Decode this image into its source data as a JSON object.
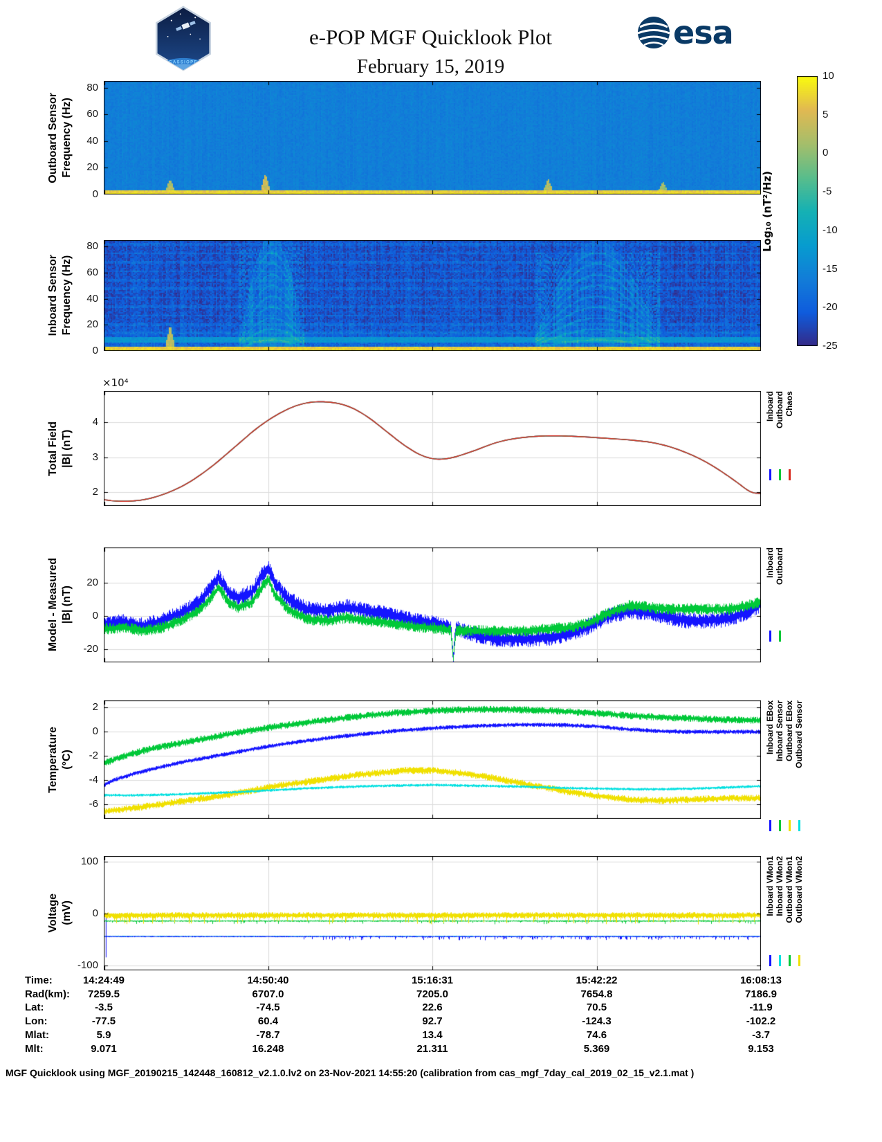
{
  "header": {
    "title": "e-POP MGF Quicklook Plot",
    "date": "February 15, 2019",
    "mission_patch": "CASSIOPE",
    "esa_wordmark": "esa"
  },
  "colorbar": {
    "label": "Log₁₀ (nT²/Hz)",
    "ticks": [
      10,
      5,
      0,
      -5,
      -10,
      -15,
      -20,
      -25
    ],
    "min": -25,
    "max": 10,
    "colormap": "parula"
  },
  "time_axis": {
    "tick_labels": [
      "14:24:49",
      "14:50:40",
      "15:16:31",
      "15:42:22",
      "16:08:13"
    ]
  },
  "chart_data": [
    {
      "name": "outboard-sensor-spectrogram",
      "type": "heatmap",
      "ylabel1": "Outboard Sensor",
      "ylabel2": "Frequency (Hz)",
      "ylim": [
        0,
        85
      ],
      "yticks": [
        0,
        20,
        40,
        60,
        80
      ],
      "base_log_power": -16,
      "noise_amp": 1.1,
      "column_noise": 0.6,
      "bottom_band": {
        "max_hz": 3.5,
        "log_power": 7,
        "noise": 1.5
      },
      "bursts": [
        {
          "x": 0.1,
          "max_hz": 10,
          "log_power": 2
        },
        {
          "x": 0.245,
          "max_hz": 14,
          "log_power": 4
        },
        {
          "x": 0.675,
          "max_hz": 10,
          "log_power": 2
        },
        {
          "x": 0.85,
          "max_hz": 8,
          "log_power": 1
        }
      ]
    },
    {
      "name": "inboard-sensor-spectrogram",
      "type": "heatmap",
      "ylabel1": "Inboard Sensor",
      "ylabel2": "Frequency (Hz)",
      "ylim": [
        0,
        85
      ],
      "yticks": [
        0,
        20,
        40,
        60,
        80
      ],
      "base_log_power": -21.5,
      "noise_amp": 2.4,
      "column_noise": 1.5,
      "low_freq_brighten": {
        "below_hz": 24,
        "log_power_boost": 3
      },
      "band_8hz": {
        "center_hz": 8.5,
        "half_width_hz": 1.6,
        "log_power": -13
      },
      "harmonic_stripes": {
        "spacing_hz": 6.8,
        "log_power_boost": 2.4
      },
      "bottom_band": {
        "max_hz": 3.5,
        "log_power": 7,
        "noise": 1.5
      },
      "event_regions": [
        {
          "x0": 0.205,
          "x1": 0.305,
          "log_power_boost": 3.5,
          "harmonics_to_hz": 80
        },
        {
          "x0": 0.655,
          "x1": 0.845,
          "log_power_boost": 3.0,
          "harmonics_to_hz": 75
        }
      ],
      "bursts": [
        {
          "x": 0.1,
          "max_hz": 18,
          "log_power": 3
        }
      ]
    },
    {
      "name": "total-field",
      "type": "line",
      "ylabel1": "Total Field",
      "ylabel2": "|B| (nT)",
      "exponent": "×10⁴",
      "unit_scale": "1e4 nT",
      "ylim": [
        1.6,
        4.9
      ],
      "yticks": [
        2,
        3,
        4
      ],
      "x": [
        0,
        0.02,
        0.05,
        0.08,
        0.12,
        0.16,
        0.2,
        0.24,
        0.28,
        0.31,
        0.34,
        0.37,
        0.4,
        0.43,
        0.46,
        0.49,
        0.52,
        0.56,
        0.6,
        0.64,
        0.68,
        0.72,
        0.76,
        0.8,
        0.84,
        0.88,
        0.92,
        0.96,
        0.985,
        1.0
      ],
      "y": [
        1.78,
        1.73,
        1.74,
        1.85,
        2.15,
        2.65,
        3.3,
        3.95,
        4.4,
        4.58,
        4.6,
        4.5,
        4.2,
        3.75,
        3.3,
        2.98,
        2.92,
        3.15,
        3.45,
        3.58,
        3.62,
        3.6,
        3.55,
        3.5,
        3.42,
        3.2,
        2.85,
        2.35,
        1.98,
        1.96
      ],
      "series": [
        {
          "name": "Inboard",
          "color": "#1414ff"
        },
        {
          "name": "Outboard",
          "color": "#00c838"
        },
        {
          "name": "Chaos",
          "color": "#d8281c"
        }
      ]
    },
    {
      "name": "model-minus-measured",
      "type": "line",
      "ylabel1": "Model - Measured",
      "ylabel2": "|B| (nT)",
      "ylim": [
        -28,
        41
      ],
      "yticks": [
        -20,
        0,
        20
      ],
      "draw_order": [
        0,
        1
      ],
      "series": [
        {
          "name": "Inboard",
          "color": "#1414ff",
          "noise_amp": 5,
          "x": [
            0,
            0.03,
            0.06,
            0.09,
            0.12,
            0.145,
            0.165,
            0.175,
            0.19,
            0.205,
            0.225,
            0.24,
            0.25,
            0.26,
            0.28,
            0.31,
            0.34,
            0.37,
            0.4,
            0.43,
            0.46,
            0.49,
            0.52,
            0.528,
            0.532,
            0.536,
            0.56,
            0.6,
            0.64,
            0.68,
            0.71,
            0.74,
            0.77,
            0.8,
            0.83,
            0.86,
            0.89,
            0.92,
            0.95,
            0.98,
            1.0
          ],
          "y": [
            -5,
            -4,
            -6,
            -3,
            2,
            8,
            18,
            23,
            14,
            11,
            14,
            24,
            29,
            20,
            10,
            4,
            3,
            5,
            3,
            1,
            -2,
            -4,
            -6,
            -7,
            -25,
            -7,
            -11,
            -14,
            -14,
            -13,
            -11,
            -6,
            0,
            3,
            2,
            -1,
            -3,
            -3,
            -2,
            2,
            7
          ]
        },
        {
          "name": "Outboard",
          "color": "#00c838",
          "noise_amp": 3.5,
          "x": [
            0,
            0.03,
            0.06,
            0.09,
            0.12,
            0.145,
            0.165,
            0.175,
            0.19,
            0.205,
            0.225,
            0.24,
            0.25,
            0.26,
            0.28,
            0.31,
            0.34,
            0.37,
            0.4,
            0.43,
            0.46,
            0.49,
            0.52,
            0.528,
            0.532,
            0.536,
            0.56,
            0.6,
            0.64,
            0.68,
            0.71,
            0.74,
            0.77,
            0.8,
            0.83,
            0.86,
            0.89,
            0.92,
            0.95,
            0.98,
            1.0
          ],
          "y": [
            -8,
            -7,
            -9,
            -7,
            -2,
            3,
            12,
            17,
            8,
            5,
            8,
            17,
            22,
            13,
            4,
            -2,
            -3,
            -1,
            -3,
            -4,
            -6,
            -7,
            -8,
            -9,
            -26,
            -9,
            -9,
            -9,
            -9,
            -8,
            -7,
            -4,
            2,
            6,
            5,
            4,
            4,
            4,
            4,
            6,
            8
          ]
        }
      ]
    },
    {
      "name": "temperature",
      "type": "line",
      "ylabel1": "Temperature",
      "ylabel2": "(°C)",
      "ylim": [
        -7.2,
        2.6
      ],
      "yticks": [
        -6,
        -4,
        -2,
        0,
        2
      ],
      "draw_order": [
        2,
        3,
        1,
        0
      ],
      "series": [
        {
          "name": "Inboard EBox",
          "color": "#1414ff",
          "noise_amp": 0.18,
          "x": [
            0,
            0.02,
            0.05,
            0.08,
            0.12,
            0.16,
            0.2,
            0.25,
            0.3,
            0.35,
            0.4,
            0.45,
            0.5,
            0.55,
            0.6,
            0.65,
            0.7,
            0.75,
            0.8,
            0.85,
            0.9,
            0.95,
            1.0
          ],
          "y": [
            -4.4,
            -3.9,
            -3.4,
            -3.0,
            -2.5,
            -2.1,
            -1.7,
            -1.2,
            -0.8,
            -0.45,
            -0.15,
            0.1,
            0.3,
            0.45,
            0.55,
            0.6,
            0.55,
            0.45,
            0.2,
            0.05,
            0.0,
            0.0,
            0.0
          ]
        },
        {
          "name": "Inboard Sensor",
          "color": "#00c838",
          "noise_amp": 0.3,
          "x": [
            0,
            0.02,
            0.05,
            0.08,
            0.12,
            0.16,
            0.2,
            0.25,
            0.3,
            0.35,
            0.4,
            0.45,
            0.5,
            0.55,
            0.6,
            0.65,
            0.7,
            0.75,
            0.8,
            0.85,
            0.9,
            0.95,
            1.0
          ],
          "y": [
            -2.6,
            -2.2,
            -1.7,
            -1.3,
            -0.9,
            -0.5,
            -0.1,
            0.35,
            0.7,
            1.05,
            1.35,
            1.6,
            1.75,
            1.85,
            1.85,
            1.8,
            1.7,
            1.55,
            1.35,
            1.2,
            1.1,
            1.0,
            0.95
          ]
        },
        {
          "name": "Outboard EBox",
          "color": "#f0e000",
          "noise_amp": 0.3,
          "x": [
            0,
            0.03,
            0.06,
            0.1,
            0.14,
            0.18,
            0.22,
            0.26,
            0.3,
            0.34,
            0.38,
            0.42,
            0.46,
            0.5,
            0.54,
            0.58,
            0.62,
            0.66,
            0.7,
            0.75,
            0.8,
            0.85,
            0.9,
            0.95,
            1.0
          ],
          "y": [
            -6.6,
            -6.4,
            -6.2,
            -5.9,
            -5.6,
            -5.3,
            -4.9,
            -4.5,
            -4.2,
            -3.9,
            -3.6,
            -3.4,
            -3.2,
            -3.2,
            -3.4,
            -3.7,
            -4.1,
            -4.5,
            -4.9,
            -5.3,
            -5.6,
            -5.7,
            -5.6,
            -5.5,
            -5.5
          ]
        },
        {
          "name": "Outboard Sensor",
          "color": "#00e0e0",
          "noise_amp": 0.12,
          "x": [
            0,
            0.05,
            0.1,
            0.15,
            0.2,
            0.25,
            0.3,
            0.35,
            0.4,
            0.45,
            0.5,
            0.55,
            0.6,
            0.65,
            0.7,
            0.75,
            0.8,
            0.85,
            0.9,
            0.95,
            1.0
          ],
          "y": [
            -5.25,
            -5.25,
            -5.2,
            -5.1,
            -5.0,
            -4.85,
            -4.7,
            -4.6,
            -4.5,
            -4.45,
            -4.4,
            -4.45,
            -4.5,
            -4.55,
            -4.65,
            -4.7,
            -4.75,
            -4.75,
            -4.7,
            -4.6,
            -4.5
          ]
        }
      ]
    },
    {
      "name": "voltage",
      "type": "line",
      "ylabel1": "Voltage",
      "ylabel2": "(mV)",
      "ylim": [
        -110,
        110
      ],
      "yticks": [
        -100,
        0,
        100
      ],
      "draw_order": [
        1,
        0,
        2,
        3
      ],
      "series": [
        {
          "name": "Inboard VMon1",
          "color": "#1414ff",
          "noise_amp": 1.2,
          "x": [
            0,
            1
          ],
          "y": [
            -45,
            -45
          ],
          "spike_amp": 6,
          "spike_prob": 0.25,
          "spike_after": 0.3,
          "startup": {
            "x": 0.002,
            "y0": -85,
            "y1": -3
          }
        },
        {
          "name": "Inboard VMon2",
          "color": "#00e0e0",
          "noise_amp": 0.8,
          "x": [
            0,
            1
          ],
          "y": [
            -44,
            -44
          ]
        },
        {
          "name": "Outboard VMon1",
          "color": "#00c838",
          "noise_amp": 1.5,
          "x": [
            0,
            1
          ],
          "y": [
            -15,
            -15
          ],
          "spike_amp": 5,
          "spike_prob": 0.08,
          "spike_after": 0
        },
        {
          "name": "Outboard VMon2",
          "color": "#f0e000",
          "noise_amp": 6,
          "x": [
            0,
            1
          ],
          "y": [
            -4,
            -4
          ],
          "spike_amp": 12,
          "spike_prob": 0.18,
          "spike_after": 0
        }
      ]
    }
  ],
  "bottom_table": {
    "rows": [
      {
        "label": "Time:",
        "values": [
          "14:24:49",
          "14:50:40",
          "15:16:31",
          "15:42:22",
          "16:08:13"
        ]
      },
      {
        "label": "Rad(km):",
        "values": [
          "7259.5",
          "6707.0",
          "7205.0",
          "7654.8",
          "7186.9"
        ]
      },
      {
        "label": "Lat:",
        "values": [
          "-3.5",
          "-74.5",
          "22.6",
          "70.5",
          "-11.9"
        ]
      },
      {
        "label": "Lon:",
        "values": [
          "-77.5",
          "60.4",
          "92.7",
          "-124.3",
          "-102.2"
        ]
      },
      {
        "label": "Mlat:",
        "values": [
          "5.9",
          "-78.7",
          "13.4",
          "74.6",
          "-3.7"
        ]
      },
      {
        "label": "Mlt:",
        "values": [
          "9.071",
          "16.248",
          "21.311",
          "5.369",
          "9.153"
        ]
      }
    ]
  },
  "footer": "MGF Quicklook using MGF_20190215_142448_160812_v2.1.0.lv2 on 23-Nov-2021 14:55:20 (calibration from cas_mgf_7day_cal_2019_02_15_v2.1.mat )"
}
